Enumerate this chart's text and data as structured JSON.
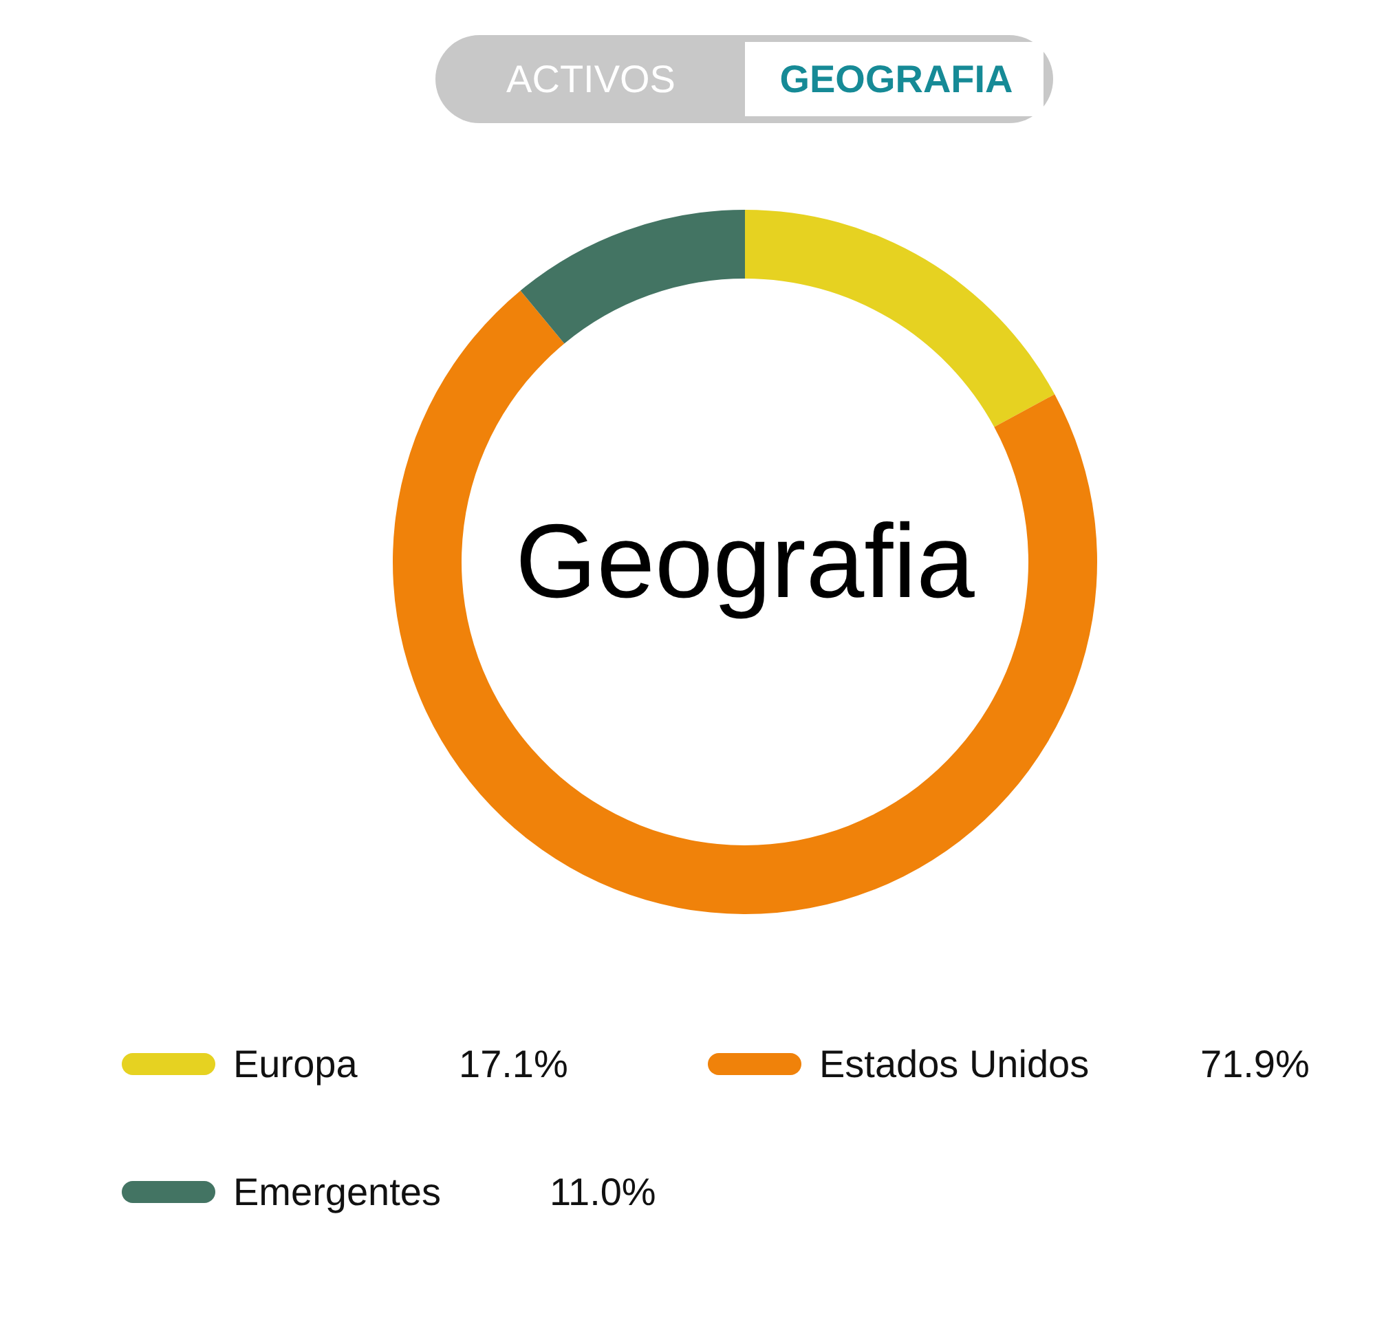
{
  "chart_data": {
    "type": "donut",
    "title": "Geografia",
    "categories": [
      "Europa",
      "Estados Unidos",
      "Emergentes"
    ],
    "values": [
      17.1,
      71.9,
      11.0
    ],
    "colors": [
      "#e6d221",
      "#f0820a",
      "#437463"
    ],
    "value_labels": [
      "17.1%",
      "71.9%",
      "11.0%"
    ],
    "annotations": [
      "ACTIVOS",
      "GEOGRAFIA"
    ],
    "legend": "bottom"
  }
}
